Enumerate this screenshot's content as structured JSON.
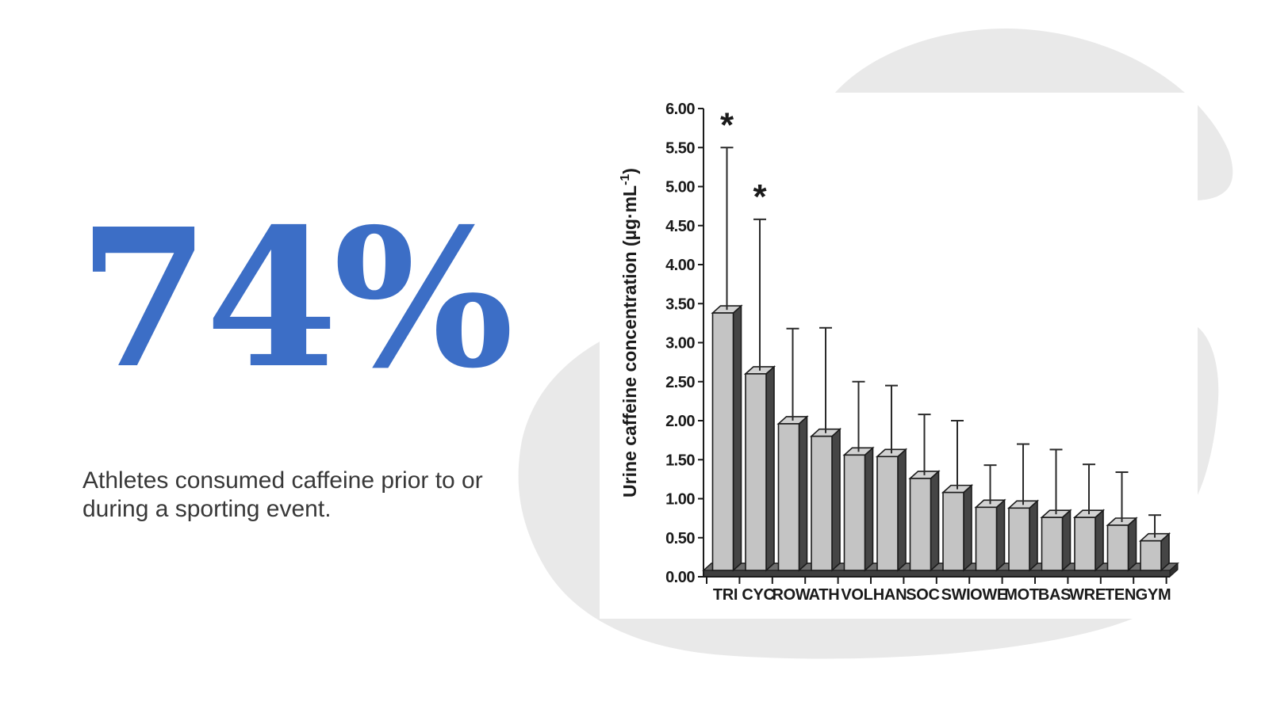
{
  "slide": {
    "stat_value": "74%",
    "caption_lines": [
      "Athletes consumed caffeine prior to or",
      "during a sporting event."
    ]
  },
  "colors": {
    "accent_blue": "#3c6ec6",
    "caption_text": "#383838",
    "background_blob": "#e9e9e9",
    "chart_text": "#1a1a1a",
    "bar_front": "#c4c4c4",
    "bar_top": "#d2d2d2",
    "bar_side": "#454545",
    "bar_outline": "#1b1b1b",
    "floor_top": "#6e6e6e",
    "floor_front": "#3f3f3f",
    "floor_side": "#2e2e2e",
    "error_bar": "#2a2a2a"
  },
  "chart_data": {
    "type": "bar",
    "style_3d": true,
    "title": "",
    "xlabel": "",
    "ylabel": "Urine caffeine concentration (µg·mL-1)",
    "ylabel_parts": {
      "base": "Urine caffeine concentration (µg·mL",
      "superscript": "-1",
      "close": ")"
    },
    "ylim": [
      0,
      6
    ],
    "ytick_step": 0.5,
    "ytick_format_decimals": 2,
    "grid": false,
    "legend": null,
    "categories": [
      "TRI",
      "CYC",
      "ROW",
      "ATH",
      "VOL",
      "HAN",
      "SOC",
      "SWI",
      "OWE",
      "MOT",
      "BAS",
      "WRE",
      "TEN",
      "GYM"
    ],
    "values": [
      3.38,
      2.6,
      1.96,
      1.8,
      1.56,
      1.54,
      1.26,
      1.08,
      0.89,
      0.88,
      0.76,
      0.76,
      0.66,
      0.46
    ],
    "error_upper": [
      5.5,
      4.58,
      3.18,
      3.19,
      2.5,
      2.45,
      2.08,
      2.0,
      1.43,
      1.7,
      1.63,
      1.44,
      1.34,
      0.79
    ],
    "annotations": [
      {
        "category": "TRI",
        "mark": "*"
      },
      {
        "category": "CYC",
        "mark": "*"
      }
    ]
  }
}
